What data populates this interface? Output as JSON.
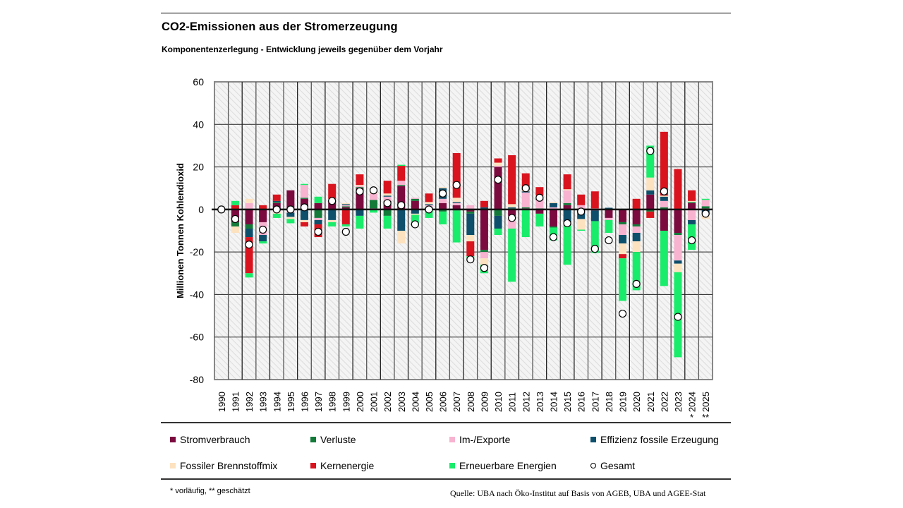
{
  "header": {
    "title": "CO2-Emissionen aus der Stromerzeugung",
    "subtitle": "Komponentenzerlegung  - Entwicklung jeweils gegenüber  dem Vorjahr"
  },
  "footer": {
    "footnote": "* vorläufig, ** geschätzt",
    "source": "Quelle: UBA nach Öko-Institut auf Basis von AGEB, UBA und AGEE-Stat"
  },
  "chart_data": {
    "type": "bar",
    "stacked": true,
    "title": "CO2-Emissionen aus der Stromerzeugung",
    "subtitle": "Komponentenzerlegung - Entwicklung jeweils gegenüber dem Vorjahr",
    "xlabel": "",
    "ylabel": "Millionen Tonnen Kohlendioxid",
    "ylim": [
      -80,
      60
    ],
    "yticks": [
      60,
      40,
      20,
      0,
      -20,
      -40,
      -60,
      -80
    ],
    "ytick_labels": [
      "60",
      "40",
      "20",
      "0",
      "-20",
      "-40",
      "-60",
      "-80"
    ],
    "grid": true,
    "legend_position": "bottom",
    "categories": [
      "1990",
      "1991",
      "1992",
      "1993",
      "1994",
      "1995",
      "1996",
      "1997",
      "1998",
      "1999",
      "2000",
      "2001",
      "2002",
      "2003",
      "2004",
      "2005",
      "2006",
      "2007",
      "2008",
      "2009",
      "2010",
      "2011",
      "2012",
      "2013",
      "2014",
      "2015",
      "2016",
      "2017",
      "2018",
      "2019",
      "2020",
      "2021",
      "2022",
      "2023",
      "2024",
      "2025"
    ],
    "category_annotations": {
      "2024": "*",
      "2025": "**"
    },
    "colors": {
      "Stromverbrauch": "#7b0a3f",
      "Verluste": "#137a3a",
      "Im-/Exporte": "#f7b3d0",
      "Effizienz fossile Erzeugung": "#0e4f6b",
      "Fossiler Brennstoffmix": "#fde2bf",
      "Kernenergie": "#d9141f",
      "Erneuerbare Energien": "#19ec6a",
      "Gesamt": "#ffffff"
    },
    "series": [
      {
        "name": "Stromverbrauch",
        "values": [
          0,
          -6,
          -7,
          -6,
          3,
          9,
          5,
          3,
          4,
          1,
          10,
          0.5,
          4,
          11,
          4,
          0.5,
          3,
          2,
          -1,
          -19,
          20,
          -3,
          0.5,
          -2,
          -8,
          2,
          -1,
          -0.5,
          -4,
          -6,
          -7,
          7,
          -10,
          -11,
          3,
          0.5
        ]
      },
      {
        "name": "Verluste",
        "values": [
          0,
          -2,
          -2,
          0,
          0.5,
          -0.5,
          0.5,
          -4,
          0.5,
          0.5,
          0.5,
          4,
          -3,
          0.5,
          1,
          0.5,
          -1,
          -0.5,
          -1,
          -1,
          -3,
          0.5,
          0.5,
          0.5,
          -0.5,
          1,
          -0.5,
          0,
          0.3,
          -1,
          -1,
          -1,
          1,
          -1,
          0.5,
          1
        ]
      },
      {
        "name": "Im-/Exporte",
        "values": [
          0,
          0,
          3,
          -6,
          -1,
          -1,
          6,
          -1,
          0.5,
          0.5,
          0.5,
          3,
          2,
          2,
          0.5,
          1,
          2,
          1,
          2,
          -3,
          0.5,
          -6,
          7,
          4,
          1,
          6,
          2,
          0.5,
          -1,
          -5,
          -3,
          0,
          3,
          -12,
          -5,
          3
        ]
      },
      {
        "name": "Effizienz fossile Erzeugung",
        "values": [
          0,
          0,
          -4,
          -3,
          0.5,
          -2,
          -5,
          -2,
          -5,
          0.5,
          -3,
          0,
          0.5,
          -10,
          -2,
          0.5,
          5,
          0.5,
          -10,
          1,
          -6,
          0.5,
          0.5,
          0.5,
          2,
          -6,
          -3,
          -5,
          0.5,
          -4,
          -4,
          2,
          2,
          -1.5,
          -2,
          -2
        ]
      },
      {
        "name": "Fossiler Brennstoffmix",
        "values": [
          0,
          -3,
          2,
          0,
          -1,
          -1,
          -1,
          0,
          -1,
          0.5,
          0.5,
          0.5,
          1,
          -6,
          -0.5,
          1,
          0.5,
          2,
          -3,
          -3,
          1.5,
          1.5,
          0.5,
          1.5,
          0.5,
          0.5,
          -5,
          0,
          0,
          -5,
          -5,
          6,
          0.5,
          -4,
          0.5,
          -2.5
        ]
      },
      {
        "name": "Kernenergie",
        "values": [
          0,
          2,
          -17,
          2,
          3,
          0,
          -2,
          -6,
          7,
          -7,
          5,
          0,
          6,
          7,
          0,
          4,
          0,
          21,
          -7,
          3,
          2,
          23,
          8,
          4,
          0,
          7,
          5,
          8,
          0,
          -2,
          5,
          -3,
          30,
          19,
          5,
          0
        ]
      },
      {
        "name": "Erneuerbare Energien",
        "values": [
          0,
          2,
          -2,
          -1,
          -2,
          -2,
          0.5,
          3,
          -2,
          -1,
          -6,
          -1.5,
          -6,
          0.5,
          -5,
          -4,
          -6,
          -15,
          -1,
          -4,
          -3,
          -25,
          -13,
          -6,
          -6,
          -20,
          -0.5,
          -15,
          -6,
          -20,
          -18,
          15,
          -26,
          -40,
          -12,
          0.5
        ]
      }
    ],
    "total": {
      "name": "Gesamt",
      "values": [
        0,
        -4.5,
        -16.5,
        -9.5,
        0,
        0,
        1,
        -10.5,
        4,
        -10.5,
        8.5,
        9,
        3,
        2,
        -7,
        0,
        7.5,
        11.5,
        -23.5,
        -27.5,
        14,
        -4,
        10,
        5.5,
        -13,
        -6.5,
        -1,
        -18.5,
        -14.5,
        -49,
        -35,
        27.5,
        8.5,
        -50.5,
        -14.5,
        -2
      ]
    }
  },
  "legend": {
    "items": [
      {
        "label": "Stromverbrauch",
        "key": "Stromverbrauch"
      },
      {
        "label": "Verluste",
        "key": "Verluste"
      },
      {
        "label": "Im-/Exporte",
        "key": "Im-/Exporte"
      },
      {
        "label": "Effizienz fossile Erzeugung",
        "key": "Effizienz fossile Erzeugung"
      },
      {
        "label": "Fossiler Brennstoffmix",
        "key": "Fossiler Brennstoffmix"
      },
      {
        "label": "Kernenergie",
        "key": "Kernenergie"
      },
      {
        "label": "Erneuerbare Energien",
        "key": "Erneuerbare Energien"
      },
      {
        "label": "Gesamt",
        "key": "Gesamt"
      }
    ]
  }
}
